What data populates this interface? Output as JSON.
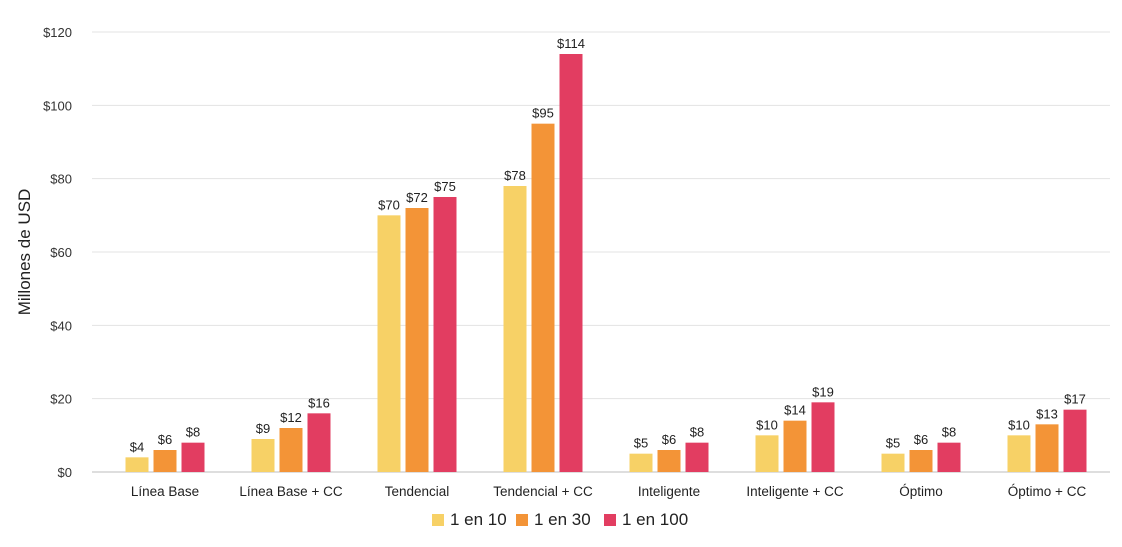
{
  "chart_data": {
    "type": "bar",
    "ylabel": "Millones de USD",
    "ylim": [
      0,
      120
    ],
    "yticks": [
      0,
      20,
      40,
      60,
      80,
      100,
      120
    ],
    "ytick_labels": [
      "$0",
      "$20",
      "$40",
      "$60",
      "$80",
      "$100",
      "$120"
    ],
    "grid": true,
    "legend_position": "bottom",
    "categories": [
      "Línea Base",
      "Línea Base + CC",
      "Tendencial",
      "Tendencial + CC",
      "Inteligente",
      "Inteligente + CC",
      "Óptimo",
      "Óptimo + CC"
    ],
    "series": [
      {
        "name": "1 en 10",
        "color": "#f7d166",
        "values": [
          4,
          9,
          70,
          78,
          5,
          10,
          5,
          10
        ],
        "labels": [
          "$4",
          "$9",
          "$70",
          "$78",
          "$5",
          "$10",
          "$5",
          "$10"
        ]
      },
      {
        "name": "1 en 30",
        "color": "#f39437",
        "values": [
          6,
          12,
          72,
          95,
          6,
          14,
          6,
          13
        ],
        "labels": [
          "$6",
          "$12",
          "$72",
          "$95",
          "$6",
          "$14",
          "$6",
          "$13"
        ]
      },
      {
        "name": "1 en 100",
        "color": "#e23d61",
        "values": [
          8,
          16,
          75,
          114,
          8,
          19,
          8,
          17
        ],
        "labels": [
          "$8",
          "$16",
          "$75",
          "$114",
          "$8",
          "$19",
          "$8",
          "$17"
        ]
      }
    ]
  }
}
